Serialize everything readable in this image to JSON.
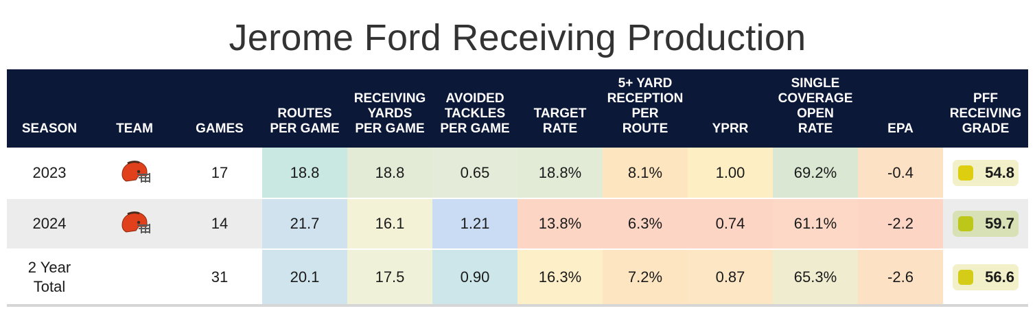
{
  "title": "Jerome Ford Receiving Production",
  "headers": [
    "SEASON",
    "TEAM",
    "GAMES",
    "ROUTES\nPER GAME",
    "RECEIVING\nYARDS\nPER GAME",
    "AVOIDED\nTACKLES\nPER GAME",
    "TARGET\nRATE",
    "5+ YARD\nRECEPTION\nPER\nROUTE",
    "YPRR",
    "SINGLE\nCOVERAGE\nOPEN\nRATE",
    "EPA",
    "PFF\nRECEIVING\nGRADE"
  ],
  "rows": [
    {
      "season": "2023",
      "team_icon": "cleveland-browns-helmet-icon",
      "games": "17",
      "routes_per_game": "18.8",
      "receiving_yards_per_game": "18.8",
      "avoided_tackles_per_game": "0.65",
      "target_rate": "18.8%",
      "five_plus_yard_reception_per_route": "8.1%",
      "yprr": "1.00",
      "single_coverage_open_rate": "69.2%",
      "epa": "-0.4",
      "pff_receiving_grade": "54.8"
    },
    {
      "season": "2024",
      "team_icon": "cleveland-browns-helmet-icon",
      "games": "14",
      "routes_per_game": "21.7",
      "receiving_yards_per_game": "16.1",
      "avoided_tackles_per_game": "1.21",
      "target_rate": "13.8%",
      "five_plus_yard_reception_per_route": "6.3%",
      "yprr": "0.74",
      "single_coverage_open_rate": "61.1%",
      "epa": "-2.2",
      "pff_receiving_grade": "59.7"
    },
    {
      "season": "2 Year\nTotal",
      "team_icon": "",
      "games": "31",
      "routes_per_game": "20.1",
      "receiving_yards_per_game": "17.5",
      "avoided_tackles_per_game": "0.90",
      "target_rate": "16.3%",
      "five_plus_yard_reception_per_route": "7.2%",
      "yprr": "0.87",
      "single_coverage_open_rate": "65.3%",
      "epa": "-2.6",
      "pff_receiving_grade": "56.6"
    }
  ],
  "cell_colors": [
    [
      "#c9e8e2",
      "#e3ebd7",
      "#e4ecd9",
      "#e2ebd6",
      "#fde5c0",
      "#fdefc3",
      "#d9e7d3",
      "#fde1c4"
    ],
    [
      "#cfe2ee",
      "#f3f2d7",
      "#c9dcf3",
      "#fdd5c4",
      "#fdd5c4",
      "#fdd5c4",
      "#fdd8c6",
      "#fdd5c4"
    ],
    [
      "#cfe4ec",
      "#eff2d8",
      "#cde6ea",
      "#fdefc7",
      "#fde5c2",
      "#fde6c4",
      "#f0ecd0",
      "#fde1c4"
    ]
  ],
  "grade_colors": {
    "badge_bg": [
      "#f2f0c8",
      "#d8e0b5",
      "#f2f0c8"
    ],
    "chip": [
      "#ddcf10",
      "#bcc71a",
      "#d4cc16"
    ]
  },
  "colors": {
    "header_bg": "#0c1838",
    "helmet_orange": "#e0401c",
    "helmet_brown": "#4a2a1a"
  }
}
